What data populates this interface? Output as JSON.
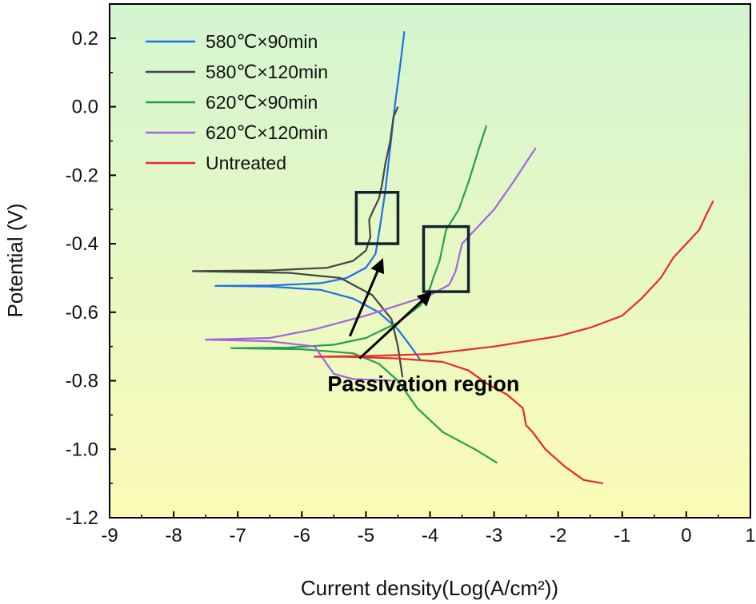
{
  "chart_data": {
    "type": "line",
    "xlabel": "Current density(Log(A/cm²))",
    "ylabel": "Potential (V)",
    "xlim": [
      -9,
      1
    ],
    "ylim": [
      -1.2,
      0.3
    ],
    "xticks": [
      -9,
      -8,
      -7,
      -6,
      -5,
      -4,
      -3,
      -2,
      -1,
      0,
      1
    ],
    "xtick_labels": [
      "-9",
      "-8",
      "-7",
      "-6",
      "-5",
      "-4",
      "-3",
      "-2",
      "-1",
      "0",
      "1"
    ],
    "yticks": [
      -1.2,
      -1.0,
      -0.8,
      -0.6,
      -0.4,
      -0.2,
      0.0,
      0.2
    ],
    "ytick_labels": [
      "-1.2",
      "-1.0",
      "-0.8",
      "-0.6",
      "-0.4",
      "-0.2",
      "0.0",
      "0.2"
    ],
    "grid": false,
    "legend_position": "top-left",
    "background": {
      "top_color": "#d3f5d1",
      "bottom_color": "#fbfbb6"
    },
    "series": [
      {
        "name": "580℃×90min",
        "color": "#1f6fe5",
        "points": [
          [
            -4.15,
            -0.74
          ],
          [
            -4.3,
            -0.7
          ],
          [
            -4.5,
            -0.65
          ],
          [
            -4.8,
            -0.6
          ],
          [
            -5.2,
            -0.56
          ],
          [
            -5.7,
            -0.535
          ],
          [
            -6.5,
            -0.525
          ],
          [
            -7.35,
            -0.523
          ],
          [
            -6.5,
            -0.522
          ],
          [
            -5.7,
            -0.515
          ],
          [
            -5.3,
            -0.5
          ],
          [
            -5.0,
            -0.47
          ],
          [
            -4.85,
            -0.43
          ],
          [
            -4.78,
            -0.35
          ],
          [
            -4.7,
            -0.25
          ],
          [
            -4.62,
            -0.12
          ],
          [
            -4.55,
            0.0
          ],
          [
            -4.48,
            0.1
          ],
          [
            -4.4,
            0.22
          ]
        ]
      },
      {
        "name": "580℃×120min",
        "color": "#444444",
        "points": [
          [
            -4.43,
            -0.79
          ],
          [
            -4.5,
            -0.7
          ],
          [
            -4.6,
            -0.62
          ],
          [
            -4.9,
            -0.55
          ],
          [
            -5.4,
            -0.5
          ],
          [
            -6.2,
            -0.485
          ],
          [
            -7.7,
            -0.48
          ],
          [
            -6.5,
            -0.478
          ],
          [
            -5.6,
            -0.47
          ],
          [
            -5.2,
            -0.45
          ],
          [
            -5.0,
            -0.42
          ],
          [
            -4.93,
            -0.38
          ],
          [
            -4.95,
            -0.33
          ],
          [
            -4.88,
            -0.3
          ],
          [
            -4.8,
            -0.27
          ],
          [
            -4.75,
            -0.23
          ],
          [
            -4.7,
            -0.17
          ],
          [
            -4.62,
            -0.1
          ],
          [
            -4.57,
            -0.03
          ],
          [
            -4.5,
            0.0
          ]
        ]
      },
      {
        "name": "620℃×90min",
        "color": "#23a050",
        "points": [
          [
            -2.95,
            -1.04
          ],
          [
            -3.3,
            -1.0
          ],
          [
            -3.8,
            -0.95
          ],
          [
            -4.2,
            -0.88
          ],
          [
            -4.5,
            -0.8
          ],
          [
            -4.8,
            -0.75
          ],
          [
            -5.2,
            -0.72
          ],
          [
            -6.0,
            -0.708
          ],
          [
            -7.1,
            -0.705
          ],
          [
            -6.2,
            -0.703
          ],
          [
            -5.5,
            -0.695
          ],
          [
            -5.0,
            -0.675
          ],
          [
            -4.5,
            -0.63
          ],
          [
            -4.15,
            -0.58
          ],
          [
            -4.0,
            -0.53
          ],
          [
            -3.95,
            -0.5
          ],
          [
            -3.85,
            -0.45
          ],
          [
            -3.75,
            -0.36
          ],
          [
            -3.55,
            -0.3
          ],
          [
            -3.4,
            -0.22
          ],
          [
            -3.25,
            -0.13
          ],
          [
            -3.12,
            -0.055
          ]
        ]
      },
      {
        "name": "620℃×120min",
        "color": "#a066e0",
        "points": [
          [
            -4.6,
            -0.8
          ],
          [
            -5.2,
            -0.795
          ],
          [
            -5.5,
            -0.78
          ],
          [
            -5.8,
            -0.7
          ],
          [
            -6.5,
            -0.685
          ],
          [
            -7.5,
            -0.68
          ],
          [
            -6.5,
            -0.675
          ],
          [
            -5.8,
            -0.65
          ],
          [
            -5.0,
            -0.61
          ],
          [
            -4.5,
            -0.58
          ],
          [
            -4.0,
            -0.55
          ],
          [
            -3.7,
            -0.52
          ],
          [
            -3.6,
            -0.48
          ],
          [
            -3.55,
            -0.44
          ],
          [
            -3.5,
            -0.4
          ],
          [
            -3.3,
            -0.36
          ],
          [
            -3.0,
            -0.3
          ],
          [
            -2.7,
            -0.22
          ],
          [
            -2.35,
            -0.12
          ]
        ]
      },
      {
        "name": "Untreated",
        "color": "#e8282d",
        "points": [
          [
            -1.3,
            -1.1
          ],
          [
            -1.6,
            -1.09
          ],
          [
            -1.9,
            -1.05
          ],
          [
            -2.2,
            -1.0
          ],
          [
            -2.4,
            -0.95
          ],
          [
            -2.5,
            -0.93
          ],
          [
            -2.55,
            -0.88
          ],
          [
            -2.8,
            -0.84
          ],
          [
            -3.1,
            -0.81
          ],
          [
            -3.4,
            -0.77
          ],
          [
            -3.8,
            -0.745
          ],
          [
            -4.5,
            -0.735
          ],
          [
            -5.3,
            -0.73
          ],
          [
            -5.8,
            -0.73
          ],
          [
            -5.0,
            -0.728
          ],
          [
            -4.0,
            -0.722
          ],
          [
            -3.0,
            -0.7
          ],
          [
            -2.0,
            -0.67
          ],
          [
            -1.5,
            -0.645
          ],
          [
            -1.0,
            -0.61
          ],
          [
            -0.7,
            -0.56
          ],
          [
            -0.4,
            -0.5
          ],
          [
            -0.2,
            -0.44
          ],
          [
            0.0,
            -0.4
          ],
          [
            0.2,
            -0.36
          ],
          [
            0.3,
            -0.32
          ],
          [
            0.42,
            -0.275
          ]
        ]
      }
    ],
    "annotations": {
      "label": "Passivation region",
      "label_anchor": [
        -5.6,
        -0.83
      ],
      "boxes": [
        {
          "x": [
            -5.15,
            -4.5
          ],
          "y": [
            -0.4,
            -0.25
          ]
        },
        {
          "x": [
            -4.1,
            -3.4
          ],
          "y": [
            -0.54,
            -0.35
          ]
        }
      ],
      "arrows": [
        {
          "from": [
            -5.25,
            -0.67
          ],
          "to": [
            -4.75,
            -0.45
          ]
        },
        {
          "from": [
            -5.1,
            -0.735
          ],
          "to": [
            -4.0,
            -0.545
          ]
        }
      ],
      "box_color": "#12232e",
      "arrow_color": "#000000"
    }
  }
}
